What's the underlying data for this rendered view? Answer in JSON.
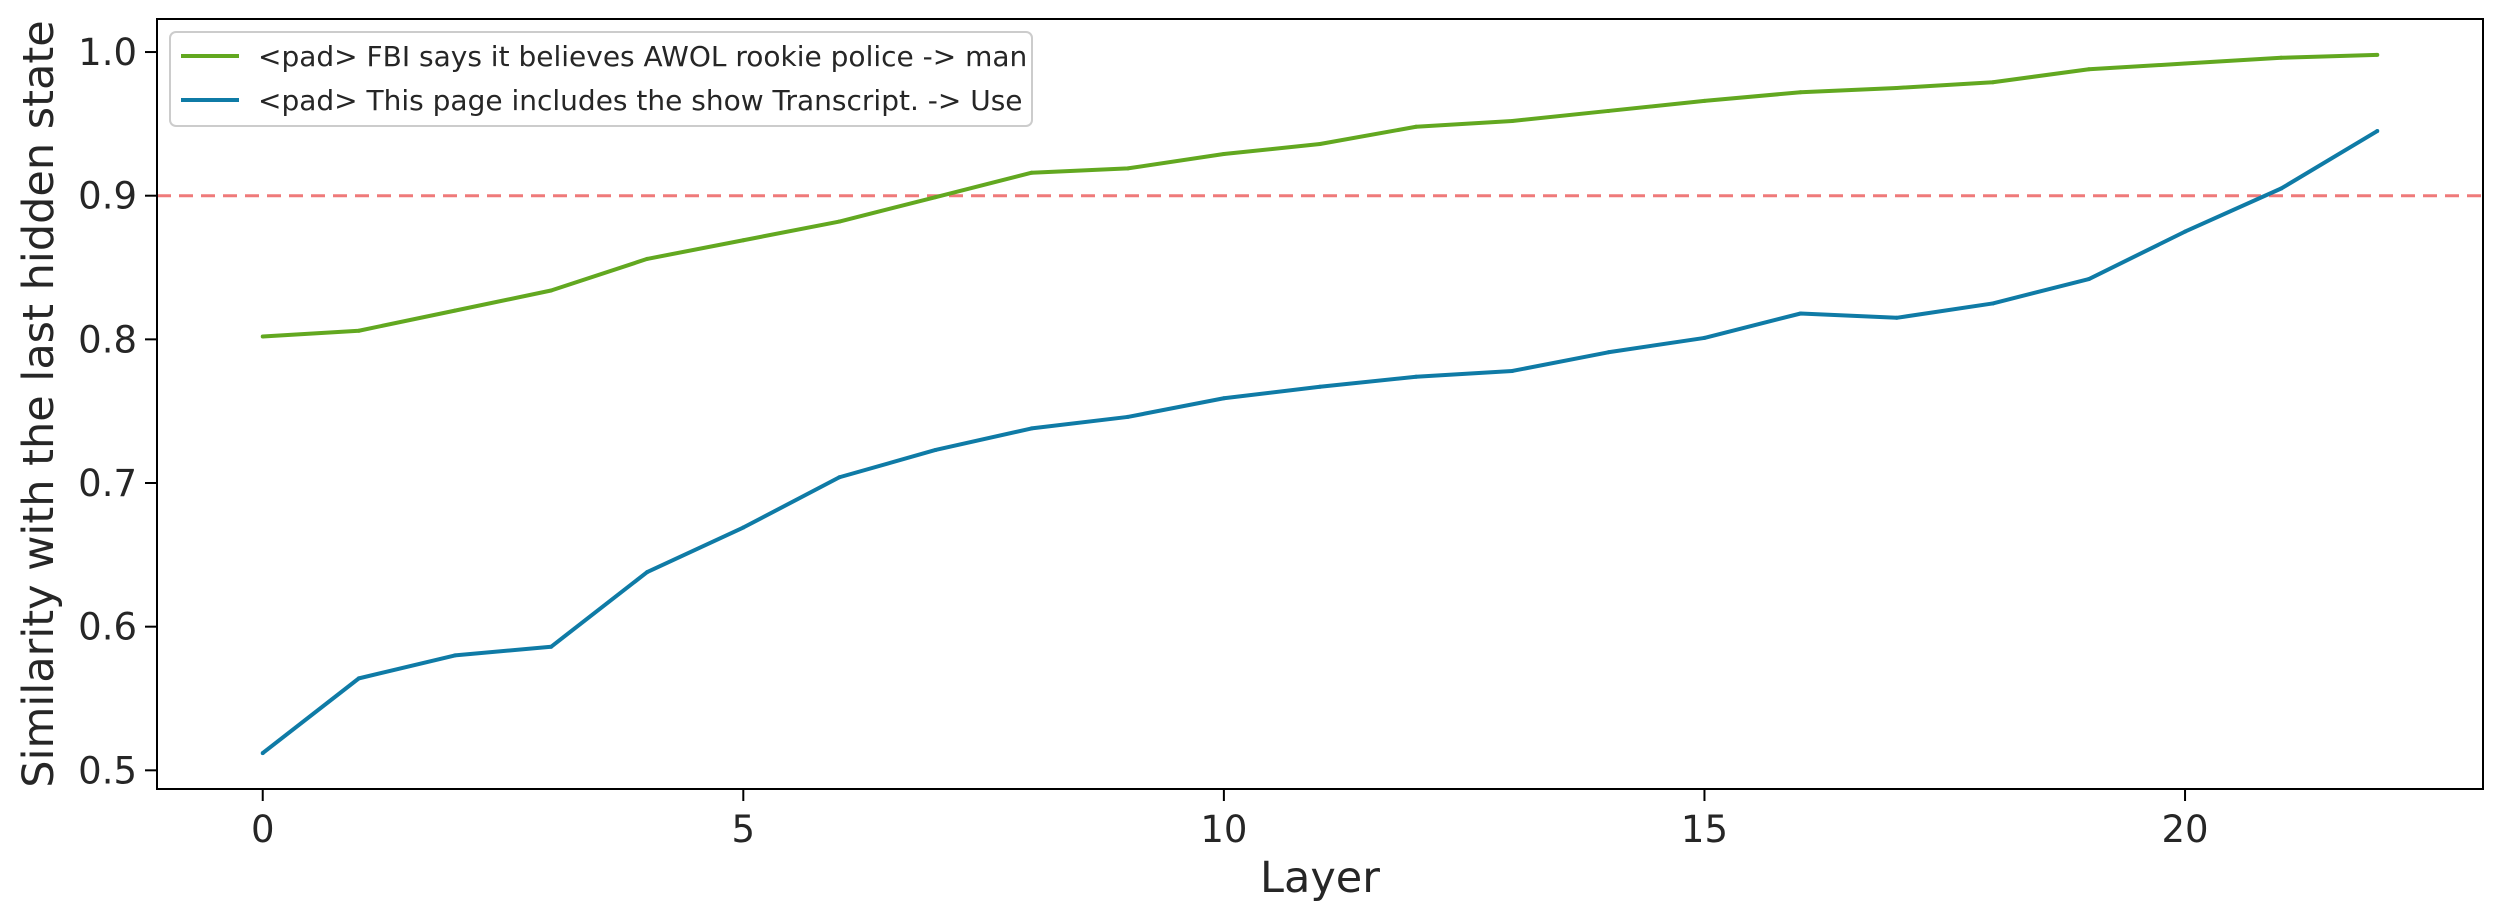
{
  "chart_data": {
    "type": "line",
    "xlabel": "Layer",
    "ylabel": "Similarity with the last hidden state",
    "xlim": [
      -1.1,
      23.1
    ],
    "ylim": [
      0.487,
      1.023
    ],
    "xticks": [
      0,
      5,
      10,
      15,
      20
    ],
    "yticks": [
      0.5,
      0.6,
      0.7,
      0.8,
      0.9,
      1.0
    ],
    "x": [
      0,
      1,
      2,
      3,
      4,
      5,
      6,
      7,
      8,
      9,
      10,
      11,
      12,
      13,
      14,
      15,
      16,
      17,
      18,
      19,
      20,
      21,
      22
    ],
    "series": [
      {
        "name": "<pad> FBI says it believes AWOL rookie police -> man",
        "color": "#62a820",
        "values": [
          0.802,
          0.806,
          0.82,
          0.834,
          0.856,
          0.869,
          0.882,
          0.899,
          0.916,
          0.919,
          0.929,
          0.936,
          0.948,
          0.952,
          0.959,
          0.966,
          0.972,
          0.975,
          0.979,
          0.988,
          0.992,
          0.996,
          0.998
        ]
      },
      {
        "name": "<pad> This page includes the show Transcript. -> Use",
        "color": "#0f7ba6",
        "values": [
          0.512,
          0.564,
          0.58,
          0.586,
          0.638,
          0.669,
          0.704,
          0.723,
          0.738,
          0.746,
          0.759,
          0.767,
          0.774,
          0.778,
          0.791,
          0.801,
          0.818,
          0.815,
          0.825,
          0.842,
          0.875,
          0.905,
          0.945
        ]
      }
    ],
    "hline": {
      "y": 0.9,
      "color": "#ef7a7a",
      "style": "dashed"
    },
    "grid": false,
    "legend_position": "top-left"
  }
}
